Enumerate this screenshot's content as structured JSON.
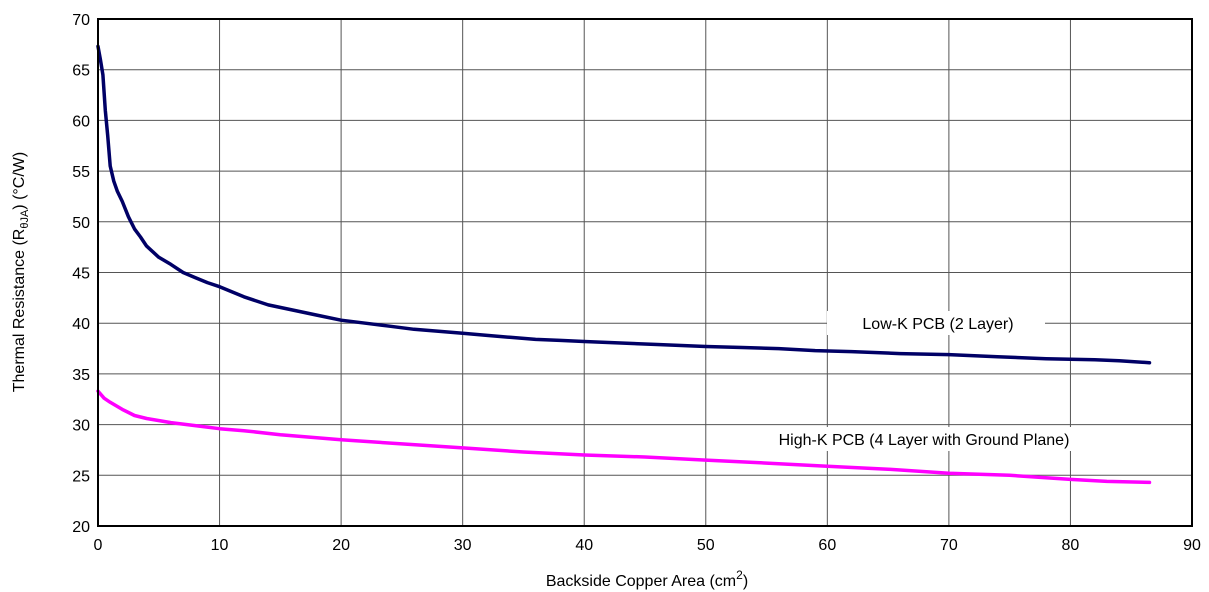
{
  "chart_data": {
    "type": "line",
    "title": "",
    "xlabel": "Backside Copper Area (cm",
    "xlabel_sup": "2",
    "xlabel_suffix": ")",
    "ylabel": "Thermal Resistance (R",
    "ylabel_sub": "θJA",
    "ylabel_suffix": ") (°C/W)",
    "xlim": [
      0,
      90
    ],
    "ylim": [
      20,
      70
    ],
    "xticks": [
      0,
      10,
      20,
      30,
      40,
      50,
      60,
      70,
      80,
      90
    ],
    "yticks": [
      20,
      25,
      30,
      35,
      40,
      45,
      50,
      55,
      60,
      65,
      70
    ],
    "grid": true,
    "series": [
      {
        "name": "Low-K PCB (2 Layer)",
        "color": "#000066",
        "x": [
          0,
          0.2,
          0.4,
          0.6,
          0.8,
          1,
          1.3,
          1.6,
          2,
          2.5,
          3,
          3.5,
          4,
          5,
          6,
          7,
          8,
          9,
          10,
          12,
          14,
          16,
          18,
          20,
          22,
          24,
          26,
          28,
          30,
          32,
          34,
          36,
          38,
          40,
          42,
          44,
          46,
          48,
          50,
          53,
          56,
          59,
          62,
          66,
          70,
          74,
          78,
          82,
          84,
          86.5
        ],
        "y": [
          67.3,
          66,
          64.5,
          61,
          58.5,
          55.5,
          54,
          53,
          52,
          50.5,
          49.3,
          48.5,
          47.6,
          46.5,
          45.8,
          45,
          44.5,
          44,
          43.6,
          42.6,
          41.8,
          41.3,
          40.8,
          40.3,
          40,
          39.7,
          39.4,
          39.2,
          39,
          38.8,
          38.6,
          38.4,
          38.3,
          38.2,
          38.1,
          38,
          37.9,
          37.8,
          37.7,
          37.6,
          37.5,
          37.3,
          37.2,
          37,
          36.9,
          36.7,
          36.5,
          36.4,
          36.3,
          36.1
        ]
      },
      {
        "name": "High-K PCB (4 Layer with Ground Plane)",
        "color": "#ff00ff",
        "x": [
          0,
          0.5,
          1,
          2,
          3,
          4,
          6,
          8,
          10,
          12,
          15,
          18,
          20,
          25,
          30,
          35,
          40,
          45,
          50,
          55,
          60,
          65,
          70,
          75,
          80,
          83,
          86.5
        ],
        "y": [
          33.3,
          32.6,
          32.2,
          31.5,
          30.9,
          30.6,
          30.2,
          29.9,
          29.6,
          29.4,
          29,
          28.7,
          28.5,
          28.1,
          27.7,
          27.3,
          27,
          26.8,
          26.5,
          26.2,
          25.9,
          25.6,
          25.2,
          25,
          24.6,
          24.4,
          24.3
        ]
      }
    ]
  }
}
